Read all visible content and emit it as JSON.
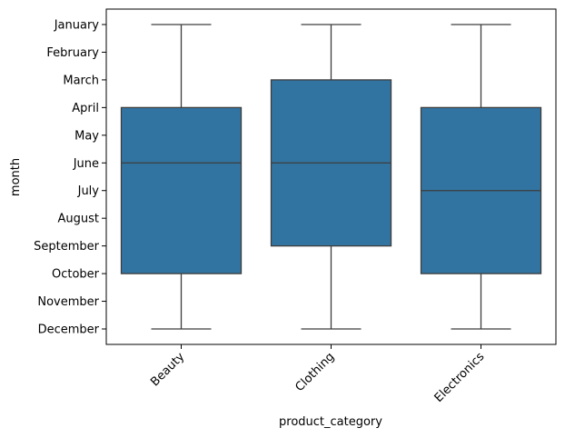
{
  "chart_data": {
    "type": "box",
    "xlabel": "product_category",
    "ylabel": "month",
    "months": [
      "January",
      "February",
      "March",
      "April",
      "May",
      "June",
      "July",
      "August",
      "September",
      "October",
      "November",
      "December"
    ],
    "categories": [
      "Beauty",
      "Clothing",
      "Electronics"
    ],
    "boxes": [
      {
        "category": "Beauty",
        "whisker_low": "January",
        "q1": "April",
        "median": "June",
        "q3": "October",
        "whisker_high": "December"
      },
      {
        "category": "Clothing",
        "whisker_low": "January",
        "q1": "March",
        "median": "June",
        "q3": "September",
        "whisker_high": "December"
      },
      {
        "category": "Electronics",
        "whisker_low": "January",
        "q1": "April",
        "median": "July",
        "q3": "October",
        "whisker_high": "December"
      }
    ],
    "y_axis_inverted": true,
    "x_tick_rotation_deg": 45,
    "grid": false,
    "box_color": "#3274a1",
    "line_color": "#3d3d3d"
  }
}
